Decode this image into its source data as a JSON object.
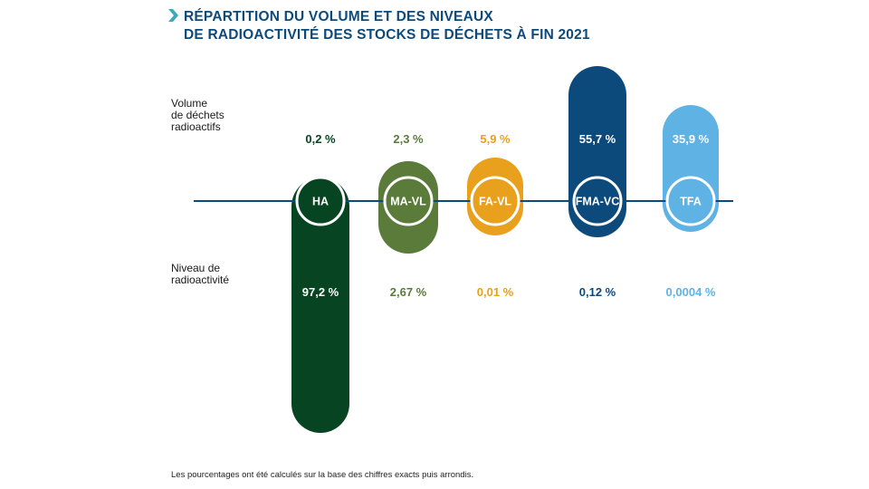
{
  "title": {
    "line1": "RÉPARTITION DU VOLUME ET DES NIVEAUX",
    "line2": "DE RADIOACTIVITÉ DES STOCKS DE DÉCHETS À FIN 2021"
  },
  "labels": {
    "volume_l1": "Volume",
    "volume_l2": "de déchets",
    "volume_l3": "radioactifs",
    "niveau_l1": "Niveau de",
    "niveau_l2": "radioactivité"
  },
  "note": "Les pourcentages ont été calculés sur la base des chiffres exacts puis arrondis.",
  "colors": {
    "axis": "#0d4a7c",
    "title": "#0d4a7c",
    "HA": "#074522",
    "MA-VL": "#5b7b3a",
    "FA-VL": "#e9a01c",
    "FMA-VC": "#0d4a7c",
    "TFA": "#5fb2e4"
  },
  "chart_data": {
    "type": "bar",
    "categories": [
      "HA",
      "MA-VL",
      "FA-VL",
      "FMA-VC",
      "TFA"
    ],
    "series": [
      {
        "name": "Volume de déchets radioactifs",
        "values": [
          0.2,
          2.3,
          5.9,
          55.7,
          35.9
        ],
        "labels": [
          "0,2 %",
          "2,3 %",
          "5,9 %",
          "55,7 %",
          "35,9 %"
        ]
      },
      {
        "name": "Niveau de radioactivité",
        "values": [
          97.2,
          2.67,
          0.01,
          0.12,
          0.0004
        ],
        "labels": [
          "97,2 %",
          "2,67 %",
          "0,01 %",
          "0,12 %",
          "0,0004 %"
        ]
      }
    ]
  }
}
